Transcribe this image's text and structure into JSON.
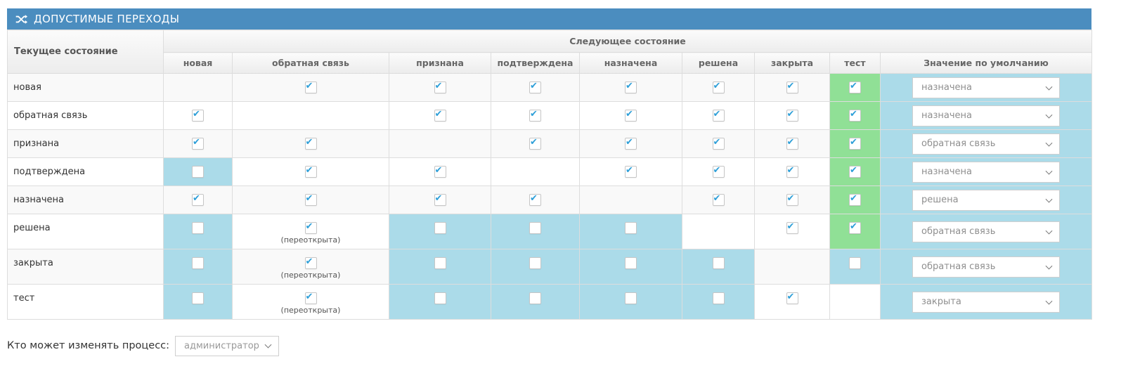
{
  "colors": {
    "title_bar": "#4b8dbf",
    "cell_blue": "#abdbe9",
    "cell_green": "#90e096",
    "check_blue": "#2e9fd8"
  },
  "panel": {
    "title": "ДОПУСТИМЫЕ ПЕРЕХОДЫ",
    "title_icon": "shuffle-icon"
  },
  "table": {
    "corner_header": "Текущее состояние",
    "group_header": "Следующее состояние",
    "columns": [
      "новая",
      "обратная связь",
      "признана",
      "подтверждена",
      "назначена",
      "решена",
      "закрыта",
      "тест",
      "Значение по умолчанию"
    ],
    "reopen_label": "(переоткрыта)",
    "rows": [
      {
        "label": "новая",
        "cells": [
          "empty",
          "checked",
          "checked",
          "checked",
          "checked",
          "checked",
          "checked",
          "checked_green"
        ],
        "default_value": "назначена"
      },
      {
        "label": "обратная связь",
        "cells": [
          "checked",
          "empty",
          "checked",
          "checked",
          "checked",
          "checked",
          "checked",
          "checked_green"
        ],
        "default_value": "назначена"
      },
      {
        "label": "признана",
        "cells": [
          "checked",
          "checked",
          "empty",
          "checked",
          "checked",
          "checked",
          "checked",
          "checked_green"
        ],
        "default_value": "обратная связь"
      },
      {
        "label": "подтверждена",
        "cells": [
          "unchecked_blue",
          "checked",
          "checked",
          "empty",
          "checked",
          "checked",
          "checked",
          "checked_green"
        ],
        "default_value": "назначена"
      },
      {
        "label": "назначена",
        "cells": [
          "checked",
          "checked",
          "checked",
          "checked",
          "empty",
          "checked",
          "checked",
          "checked_green"
        ],
        "default_value": "решена"
      },
      {
        "label": "решена",
        "cells": [
          "unchecked_blue",
          "checked_reopen",
          "unchecked_blue",
          "unchecked_blue",
          "unchecked_blue",
          "empty",
          "checked",
          "checked_green"
        ],
        "default_value": "обратная связь"
      },
      {
        "label": "закрыта",
        "cells": [
          "unchecked_blue",
          "checked_reopen",
          "unchecked_blue",
          "unchecked_blue",
          "unchecked_blue",
          "unchecked_blue",
          "empty",
          "unchecked_blue"
        ],
        "default_value": "обратная связь"
      },
      {
        "label": "тест",
        "cells": [
          "unchecked_blue",
          "checked_reopen",
          "unchecked_blue",
          "unchecked_blue",
          "unchecked_blue",
          "unchecked_blue",
          "checked",
          "empty"
        ],
        "default_value": "закрыта"
      }
    ]
  },
  "footer": {
    "label": "Кто может изменять процесс:",
    "value": "администратор"
  }
}
